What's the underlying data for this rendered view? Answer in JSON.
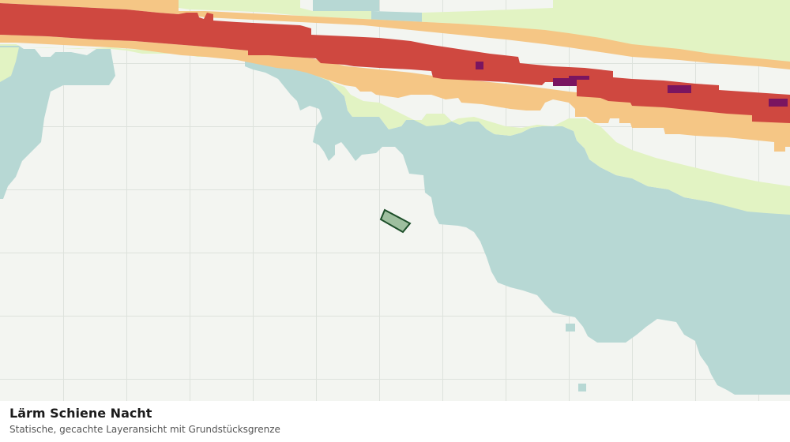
{
  "caption": {
    "title": "Lärm Schiene Nacht",
    "subtitle": "Statische, gecachte Layeransicht mit Grundstücksgrenze"
  },
  "map": {
    "layer": "Lärm Schiene Nacht",
    "colors": {
      "background": "#f3f5f1",
      "grid": "#dde2dc",
      "noise_lowest": "#b7d8d4",
      "noise_low": "#e2f3c3",
      "noise_mid": "#f5c685",
      "noise_high": "#cf4840",
      "noise_highest": "#7a1560",
      "parcel_fill": "#9ebf9f",
      "parcel_outline": "#1d4f2a"
    }
  }
}
